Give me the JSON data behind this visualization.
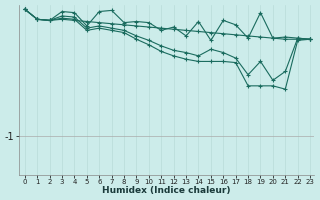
{
  "xlabel": "Humidex (Indice chaleur)",
  "background_color": "#ccecea",
  "grid_color_v": "#b8dcd8",
  "line_color": "#1a6b5e",
  "xlim_min": -0.5,
  "xlim_max": 23.3,
  "ylim_min": -1.35,
  "ylim_max": 0.18,
  "ytick_val": -1.0,
  "ytick_label": "-1",
  "xticks": [
    0,
    1,
    2,
    3,
    4,
    5,
    6,
    7,
    8,
    9,
    10,
    11,
    12,
    13,
    14,
    15,
    16,
    17,
    18,
    19,
    20,
    21,
    22,
    23
  ],
  "series": [
    {
      "y": [
        0.14,
        0.05,
        0.04,
        0.05,
        0.04,
        0.03,
        0.02,
        0.01,
        0.0,
        -0.01,
        -0.02,
        -0.03,
        -0.04,
        -0.05,
        -0.06,
        -0.07,
        -0.08,
        -0.09,
        -0.1,
        -0.11,
        -0.12,
        -0.13,
        -0.13,
        -0.13
      ]
    },
    {
      "y": [
        0.14,
        0.05,
        0.04,
        0.12,
        0.11,
        -0.01,
        0.12,
        0.13,
        0.02,
        0.03,
        0.02,
        -0.05,
        -0.02,
        -0.1,
        0.03,
        -0.14,
        0.04,
        0.0,
        -0.12,
        0.11,
        -0.12,
        -0.11,
        -0.12,
        -0.13
      ]
    },
    {
      "y": [
        0.14,
        0.05,
        0.04,
        0.08,
        0.07,
        -0.03,
        -0.01,
        -0.03,
        -0.05,
        -0.1,
        -0.14,
        -0.19,
        -0.23,
        -0.25,
        -0.28,
        -0.22,
        -0.25,
        -0.3,
        -0.45,
        -0.33,
        -0.5,
        -0.42,
        -0.12,
        -0.13
      ]
    },
    {
      "y": [
        0.14,
        0.05,
        0.04,
        0.06,
        0.05,
        -0.05,
        -0.03,
        -0.05,
        -0.07,
        -0.13,
        -0.18,
        -0.24,
        -0.28,
        -0.31,
        -0.33,
        -0.33,
        -0.33,
        -0.34,
        -0.55,
        -0.55,
        -0.55,
        -0.58,
        -0.14,
        -0.13
      ]
    }
  ]
}
